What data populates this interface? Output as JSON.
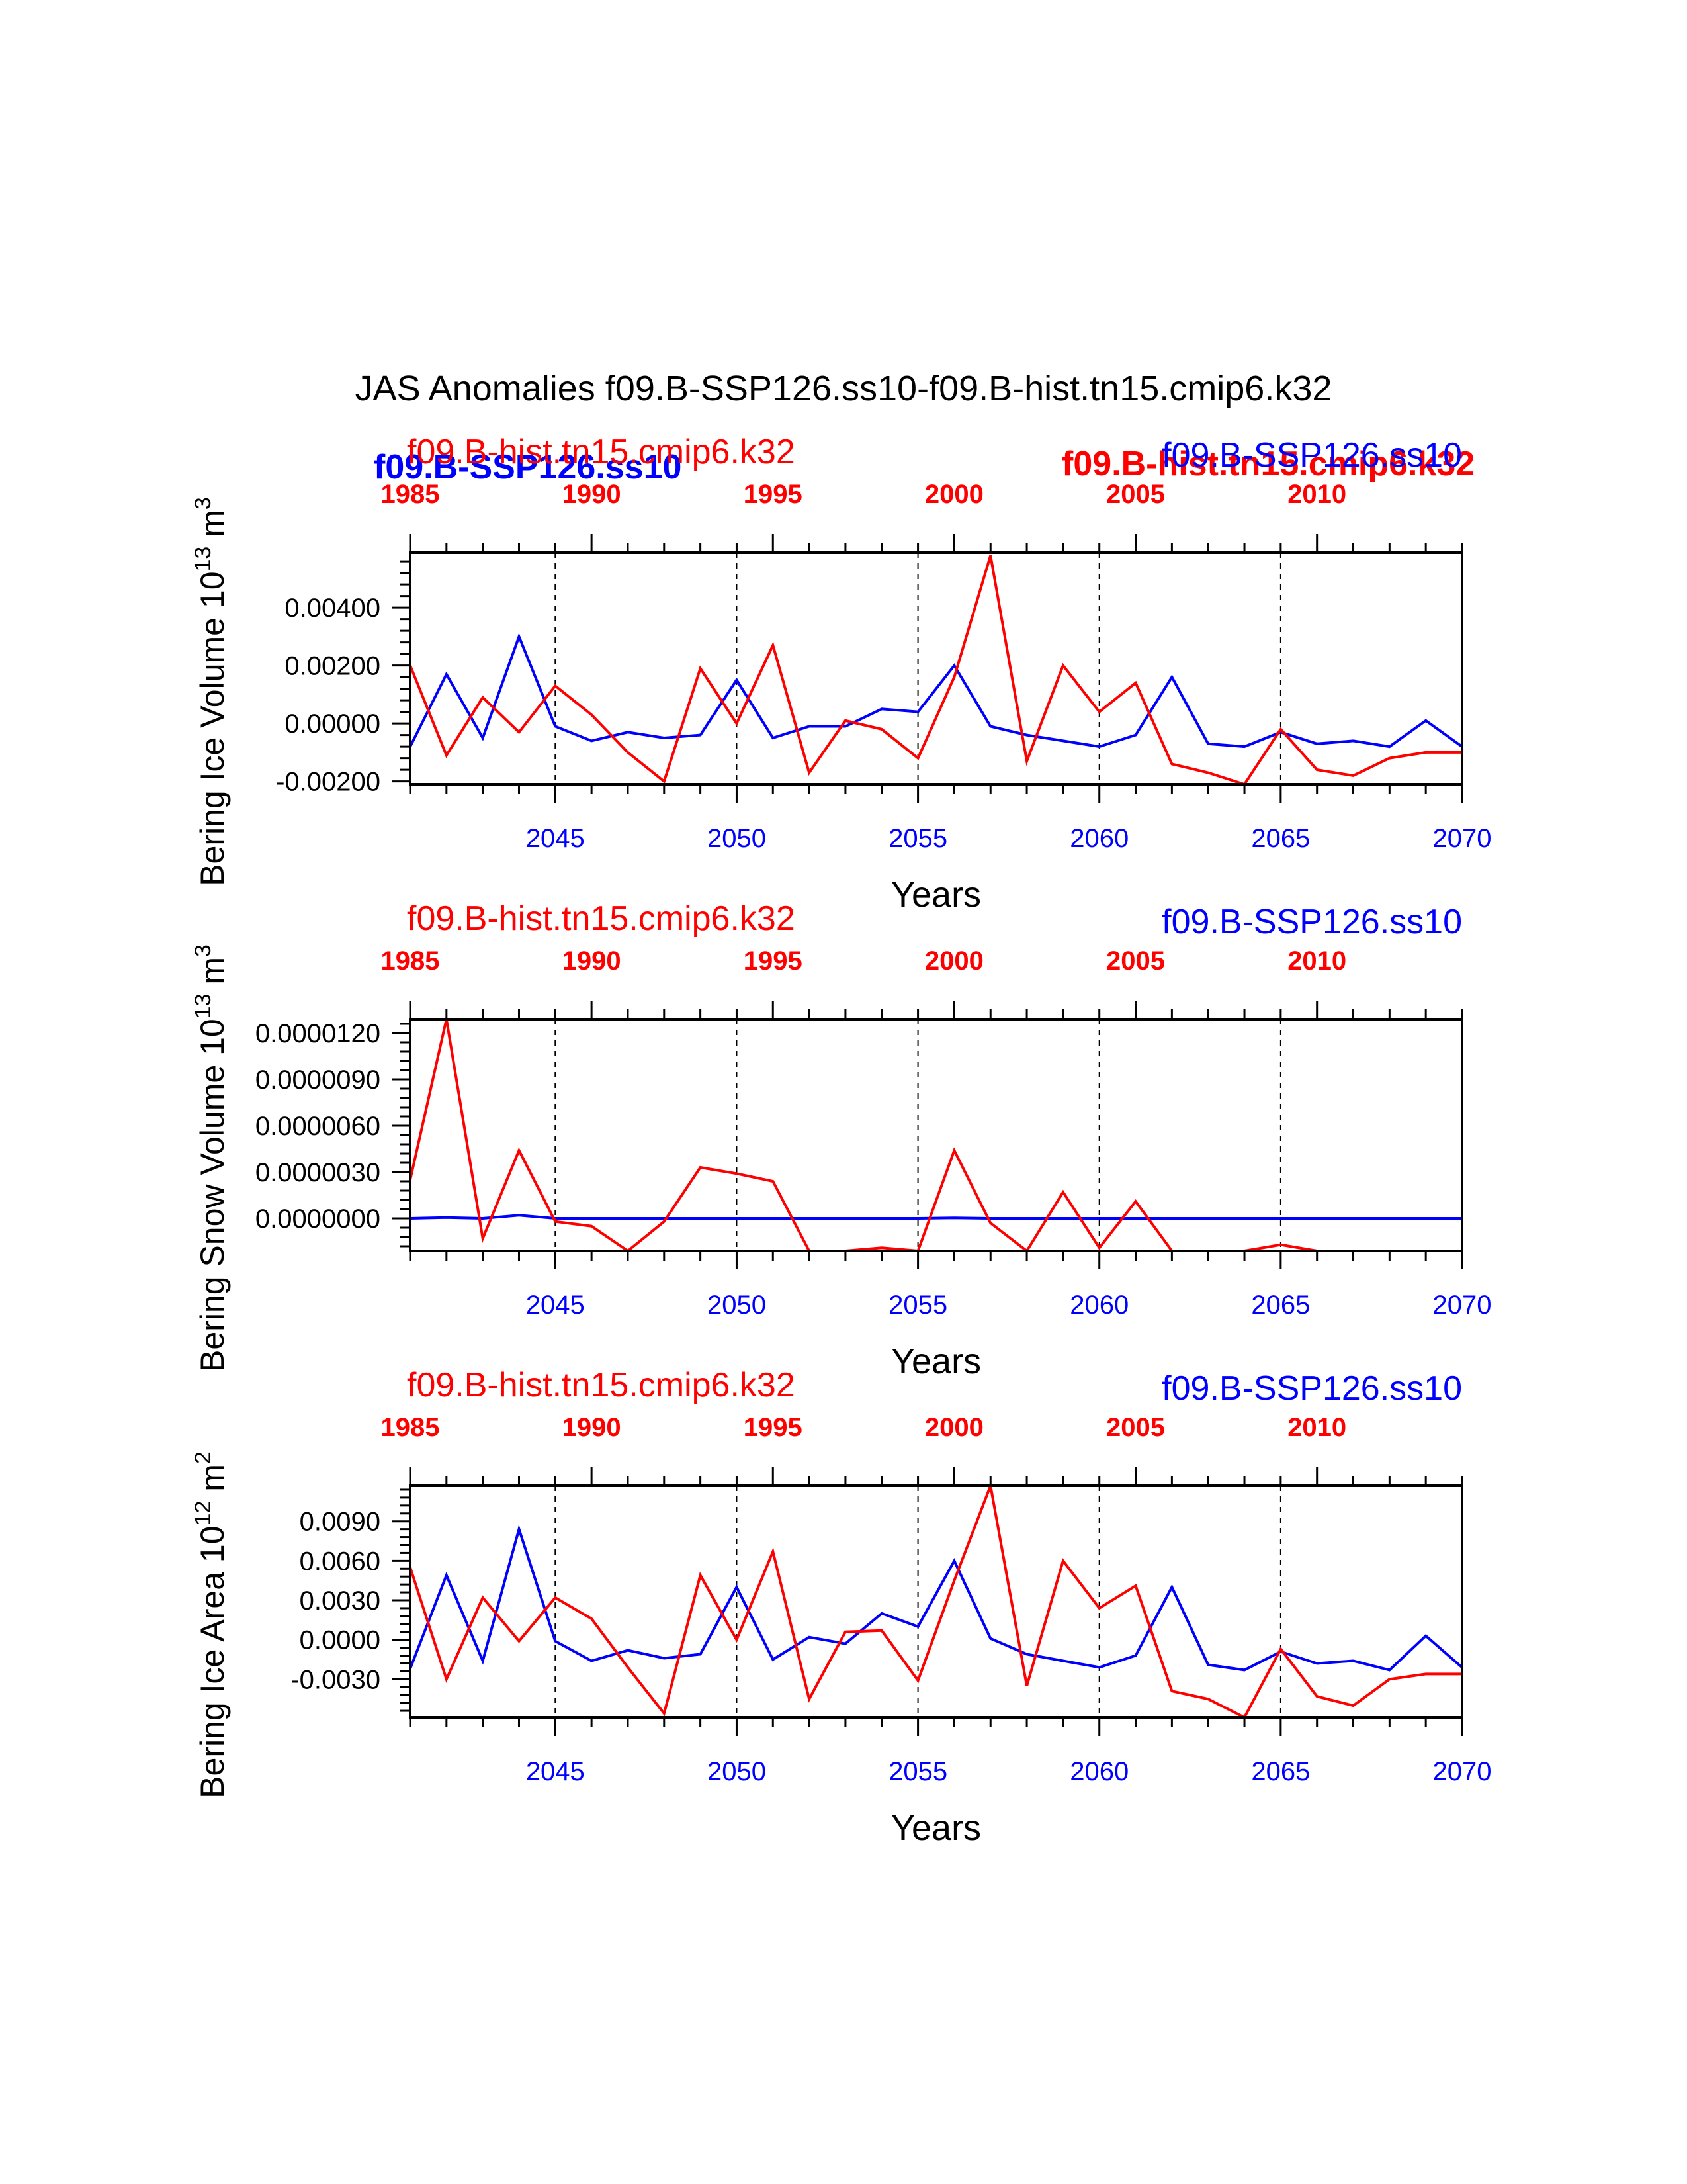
{
  "figure": {
    "title": "JAS Anomalies f09.B-SSP126.ss10-f09.B-hist.tn15.cmip6.k32",
    "xlabel": "Years",
    "colors": {
      "ssp": "#0000ff",
      "hist": "#ff0000",
      "axis": "#000000"
    },
    "overlay_labels": {
      "left": "f09.B-SSP126.ss10",
      "right": "f09.B-hist.tn15.cmip6.k32"
    }
  },
  "chart_data": [
    {
      "type": "line",
      "ylabel_prefix": "Bering Ice Volume 10",
      "ylabel_exp": "13",
      "ylabel_unit": " m",
      "ylabel_unit_exp": "3",
      "ylim": [
        -0.0021,
        0.0059
      ],
      "yticks": [
        -0.002,
        0.0,
        0.002,
        0.004
      ],
      "yticklabels": [
        "-0.00200",
        "0.00000",
        "0.00200",
        "0.00400"
      ],
      "ymajor_step": 0.002,
      "ynum_minor": 4,
      "bottom_axis": {
        "range": [
          2041,
          2070
        ],
        "ticks": [
          2045,
          2050,
          2055,
          2060,
          2065,
          2070
        ],
        "ticklabels": [
          "2045",
          "2050",
          "2055",
          "2060",
          "2065",
          "2070"
        ]
      },
      "top_axis": {
        "range": [
          1985,
          2014
        ],
        "ticks": [
          1985,
          1990,
          1995,
          2000,
          2005,
          2010
        ],
        "ticklabels": [
          "1985",
          "1990",
          "1995",
          "2000",
          "2005",
          "2010"
        ]
      },
      "top_left_label": "f09.B-hist.tn15.cmip6.k32",
      "top_right_label": "f09.B-SSP126.ss10",
      "series": [
        {
          "name": "f09.B-SSP126.ss10",
          "axis": "bottom",
          "x": [
            2041,
            2042,
            2043,
            2044,
            2045,
            2046,
            2047,
            2048,
            2049,
            2050,
            2051,
            2052,
            2053,
            2054,
            2055,
            2056,
            2057,
            2058,
            2059,
            2060,
            2061,
            2062,
            2063,
            2064,
            2065,
            2066,
            2067,
            2068,
            2069,
            2070
          ],
          "values": [
            -0.0008,
            0.0017,
            -0.0005,
            0.003,
            -0.0001,
            -0.0006,
            -0.0003,
            -0.0005,
            -0.0004,
            0.0015,
            -0.0005,
            -0.0001,
            -0.0001,
            0.0005,
            0.0004,
            0.002,
            -0.0001,
            -0.0004,
            -0.0006,
            -0.0008,
            -0.0004,
            0.0016,
            -0.0007,
            -0.0008,
            -0.0003,
            -0.0007,
            -0.0006,
            -0.0008,
            0.0001,
            -0.0008
          ]
        },
        {
          "name": "f09.B-hist.tn15.cmip6.k32",
          "axis": "top",
          "x": [
            1985,
            1986,
            1987,
            1988,
            1989,
            1990,
            1991,
            1992,
            1993,
            1994,
            1995,
            1996,
            1997,
            1998,
            1999,
            2000,
            2001,
            2002,
            2003,
            2004,
            2005,
            2006,
            2007,
            2008,
            2009,
            2010,
            2011,
            2012,
            2013,
            2014
          ],
          "values": [
            0.002,
            -0.0011,
            0.0009,
            -0.0003,
            0.0013,
            0.0003,
            -0.001,
            -0.002,
            0.0019,
            0.0,
            0.0027,
            -0.0017,
            0.0001,
            -0.0002,
            -0.0012,
            0.0016,
            0.0058,
            -0.0013,
            0.002,
            0.0004,
            0.0014,
            -0.0014,
            -0.0017,
            -0.0021,
            -0.0002,
            -0.0016,
            -0.0018,
            -0.0012,
            -0.001,
            -0.001
          ]
        }
      ]
    },
    {
      "type": "line",
      "ylabel_prefix": "Bering Snow Volume 10",
      "ylabel_exp": "13",
      "ylabel_unit": " m",
      "ylabel_unit_exp": "3",
      "ylim": [
        -2.1e-06,
        1.29e-05
      ],
      "yticks": [
        0.0,
        3e-06,
        6e-06,
        9e-06,
        1.2e-05
      ],
      "yticklabels": [
        "0.0000000",
        "0.0000030",
        "0.0000060",
        "0.0000090",
        "0.0000120"
      ],
      "ymajor_step": 3e-06,
      "ynum_minor": 4,
      "bottom_axis": {
        "range": [
          2041,
          2070
        ],
        "ticks": [
          2045,
          2050,
          2055,
          2060,
          2065,
          2070
        ],
        "ticklabels": [
          "2045",
          "2050",
          "2055",
          "2060",
          "2065",
          "2070"
        ]
      },
      "top_axis": {
        "range": [
          1985,
          2014
        ],
        "ticks": [
          1985,
          1990,
          1995,
          2000,
          2005,
          2010
        ],
        "ticklabels": [
          "1985",
          "1990",
          "1995",
          "2000",
          "2005",
          "2010"
        ]
      },
      "top_left_label": "f09.B-hist.tn15.cmip6.k32",
      "top_right_label": "f09.B-SSP126.ss10",
      "series": [
        {
          "name": "f09.B-SSP126.ss10",
          "axis": "bottom",
          "x": [
            2041,
            2042,
            2043,
            2044,
            2045,
            2046,
            2047,
            2048,
            2049,
            2050,
            2051,
            2052,
            2053,
            2054,
            2055,
            2056,
            2057,
            2058,
            2059,
            2060,
            2061,
            2062,
            2063,
            2064,
            2065,
            2066,
            2067,
            2068,
            2069,
            2070
          ],
          "values": [
            0.0,
            5e-08,
            0.0,
            2e-07,
            0.0,
            0.0,
            0.0,
            0.0,
            0.0,
            0.0,
            0.0,
            0.0,
            0.0,
            0.0,
            0.0,
            3e-08,
            0.0,
            0.0,
            0.0,
            0.0,
            0.0,
            0.0,
            0.0,
            0.0,
            0.0,
            0.0,
            0.0,
            0.0,
            0.0,
            0.0
          ]
        },
        {
          "name": "f09.B-hist.tn15.cmip6.k32",
          "axis": "top",
          "x": [
            1985,
            1986,
            1987,
            1988,
            1989,
            1990,
            1991,
            1992,
            1993,
            1994,
            1995,
            1996,
            1997,
            1998,
            1999,
            2000,
            2001,
            2002,
            2003,
            2004,
            2005,
            2006,
            2007,
            2008,
            2009,
            2010,
            2011,
            2012,
            2013,
            2014
          ],
          "values": [
            2.5e-06,
            1.29e-05,
            -1.3e-06,
            4.4e-06,
            -2e-07,
            -5e-07,
            -2.1e-06,
            -2e-07,
            3.3e-06,
            2.9e-06,
            2.4e-06,
            -2.1e-06,
            -2.1e-06,
            -1.9e-06,
            -2.1e-06,
            4.4e-06,
            -3e-07,
            -2.1e-06,
            1.7e-06,
            -1.9e-06,
            1.1e-06,
            -2.1e-06,
            -2.1e-06,
            -2.1e-06,
            -1.7e-06,
            -2.1e-06,
            -2.1e-06,
            -2.1e-06,
            -2.1e-06,
            -2.1e-06
          ]
        }
      ]
    },
    {
      "type": "line",
      "ylabel_prefix": "Bering Ice Area 10",
      "ylabel_exp": "12",
      "ylabel_unit": " m",
      "ylabel_unit_exp": "2",
      "ylim": [
        -0.0059,
        0.0117
      ],
      "yticks": [
        -0.003,
        0.0,
        0.003,
        0.006,
        0.009
      ],
      "yticklabels": [
        "-0.0030",
        "0.0000",
        "0.0030",
        "0.0060",
        "0.0090"
      ],
      "ymajor_step": 0.003,
      "ynum_minor": 4,
      "bottom_axis": {
        "range": [
          2041,
          2070
        ],
        "ticks": [
          2045,
          2050,
          2055,
          2060,
          2065,
          2070
        ],
        "ticklabels": [
          "2045",
          "2050",
          "2055",
          "2060",
          "2065",
          "2070"
        ]
      },
      "top_axis": {
        "range": [
          1985,
          2014
        ],
        "ticks": [
          1985,
          1990,
          1995,
          2000,
          2005,
          2010
        ],
        "ticklabels": [
          "1985",
          "1990",
          "1995",
          "2000",
          "2005",
          "2010"
        ]
      },
      "top_left_label": "f09.B-hist.tn15.cmip6.k32",
      "top_right_label": "f09.B-SSP126.ss10",
      "series": [
        {
          "name": "f09.B-SSP126.ss10",
          "axis": "bottom",
          "x": [
            2041,
            2042,
            2043,
            2044,
            2045,
            2046,
            2047,
            2048,
            2049,
            2050,
            2051,
            2052,
            2053,
            2054,
            2055,
            2056,
            2057,
            2058,
            2059,
            2060,
            2061,
            2062,
            2063,
            2064,
            2065,
            2066,
            2067,
            2068,
            2069,
            2070
          ],
          "values": [
            -0.0022,
            0.0049,
            -0.0016,
            0.0084,
            -0.0001,
            -0.0016,
            -0.0008,
            -0.0014,
            -0.0011,
            0.004,
            -0.0015,
            0.0002,
            -0.0003,
            0.002,
            0.001,
            0.006,
            0.0001,
            -0.0011,
            -0.0016,
            -0.0021,
            -0.0012,
            0.004,
            -0.0019,
            -0.0023,
            -0.0009,
            -0.0018,
            -0.0016,
            -0.0023,
            0.0003,
            -0.0021
          ]
        },
        {
          "name": "f09.B-hist.tn15.cmip6.k32",
          "axis": "top",
          "x": [
            1985,
            1986,
            1987,
            1988,
            1989,
            1990,
            1991,
            1992,
            1993,
            1994,
            1995,
            1996,
            1997,
            1998,
            1999,
            2000,
            2001,
            2002,
            2003,
            2004,
            2005,
            2006,
            2007,
            2008,
            2009,
            2010,
            2011,
            2012,
            2013,
            2014
          ],
          "values": [
            0.0055,
            -0.003,
            0.0032,
            -0.0001,
            0.0032,
            0.0016,
            -0.0021,
            -0.0056,
            0.0049,
            0.0,
            0.0067,
            -0.0045,
            0.0006,
            0.0007,
            -0.0031,
            0.0045,
            0.0117,
            -0.0035,
            0.006,
            0.0024,
            0.0041,
            -0.0039,
            -0.0045,
            -0.0059,
            -0.0007,
            -0.0043,
            -0.005,
            -0.003,
            -0.0026,
            -0.0026
          ]
        }
      ]
    }
  ]
}
